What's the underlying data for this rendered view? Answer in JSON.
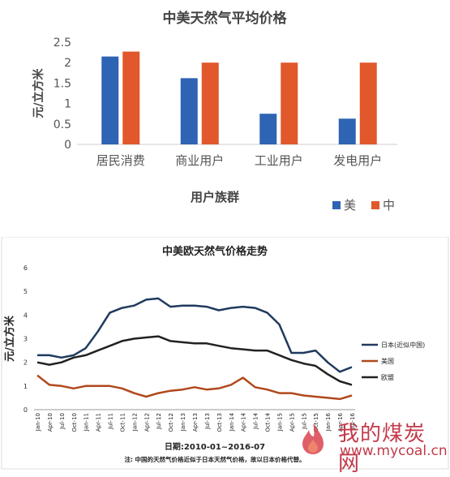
{
  "charts": {
    "top": {
      "type": "bar",
      "title": "中美天然气平均价格",
      "xlabel": "用户族群",
      "ylabel": "元/立方米",
      "ylim": [
        0,
        2.5
      ],
      "yticks": [
        "0",
        "0.5",
        "1",
        "1.5",
        "2",
        "2.5"
      ],
      "categories": [
        "居民消费",
        "商业用户",
        "工业用户",
        "发电用户"
      ],
      "series": [
        {
          "name": "美",
          "color": "#2e64b3",
          "values": [
            2.15,
            1.62,
            0.75,
            0.63
          ]
        },
        {
          "name": "中",
          "color": "#e0582b",
          "values": [
            2.27,
            2.0,
            2.0,
            2.0
          ]
        }
      ],
      "legend_position": "bottom-right"
    },
    "bottom": {
      "type": "line",
      "title": "中美欧天然气价格走势",
      "ylabel": "元/立方米",
      "xlabel": "日期:2010-01~2016-07",
      "footnote": "注: 中国的天然气价格近似于日本天然气价格，故以日本价格代替。",
      "ylim": [
        0,
        6
      ],
      "yticks": [
        "0",
        "1",
        "2",
        "3",
        "4",
        "5",
        "6"
      ],
      "x": [
        "Jan-10",
        "Apr-10",
        "Jul-10",
        "Oct-10",
        "Jan-11",
        "Apr-11",
        "Jul-11",
        "Oct-11",
        "Jan-12",
        "Apr-12",
        "Jul-12",
        "Oct-12",
        "Jan-13",
        "Apr-13",
        "Jul-13",
        "Oct-13",
        "Jan-14",
        "Apr-14",
        "Jul-14",
        "Oct-14",
        "Jan-15",
        "Apr-15",
        "Jul-15",
        "Oct-15",
        "Jan-16",
        "Apr-16",
        "Jul-16"
      ],
      "series": [
        {
          "name": "日本(近似中国)",
          "color": "#1f3a5f",
          "values": [
            2.3,
            2.3,
            2.2,
            2.3,
            2.6,
            3.3,
            4.1,
            4.3,
            4.4,
            4.65,
            4.7,
            4.35,
            4.4,
            4.4,
            4.35,
            4.2,
            4.3,
            4.35,
            4.3,
            4.1,
            3.6,
            2.4,
            2.4,
            2.5,
            2.0,
            1.6,
            1.8
          ]
        },
        {
          "name": "美国",
          "color": "#b0481c",
          "values": [
            1.45,
            1.05,
            1.0,
            0.9,
            1.0,
            1.0,
            1.0,
            0.9,
            0.7,
            0.55,
            0.7,
            0.8,
            0.85,
            0.95,
            0.85,
            0.9,
            1.05,
            1.35,
            0.95,
            0.85,
            0.7,
            0.7,
            0.6,
            0.55,
            0.5,
            0.45,
            0.6
          ]
        },
        {
          "name": "欧盟",
          "color": "#222222",
          "values": [
            2.0,
            1.9,
            2.0,
            2.2,
            2.3,
            2.5,
            2.7,
            2.9,
            3.0,
            3.05,
            3.1,
            2.9,
            2.85,
            2.8,
            2.8,
            2.7,
            2.6,
            2.55,
            2.5,
            2.5,
            2.3,
            2.1,
            1.95,
            1.85,
            1.5,
            1.2,
            1.05
          ]
        }
      ],
      "legend_position": "right"
    }
  },
  "watermark": {
    "text": "我的煤炭网",
    "url": "www.mycoal.cn"
  }
}
